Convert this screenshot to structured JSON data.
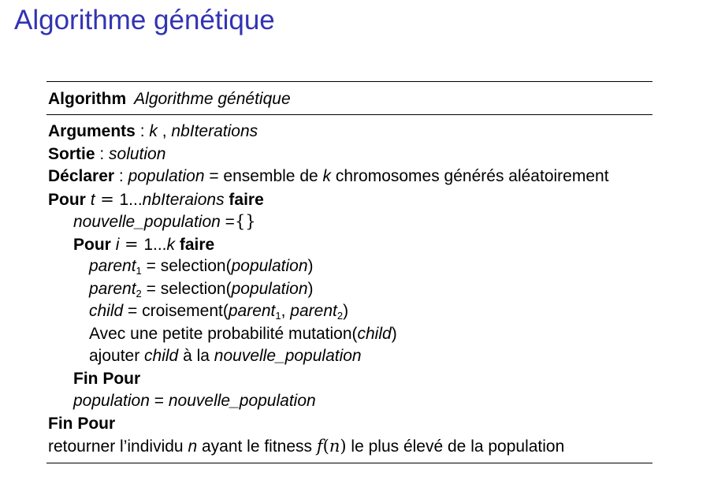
{
  "slide": {
    "title": "Algorithme génétique"
  },
  "algorithm": {
    "caption_keyword": "Algorithm",
    "caption_name": "Algorithme génétique",
    "arguments": {
      "label": "Arguments",
      "sep": " : ",
      "var1": "k",
      "comma": " , ",
      "var2": "nbIterations"
    },
    "sortie": {
      "label": "Sortie",
      "sep": " : ",
      "var": "solution"
    },
    "declarer": {
      "label": "Déclarer",
      "sep": " : ",
      "var": "population",
      "text1": " = ensemble de ",
      "k": "k",
      "text2": " chromosomes générés aléatoirement"
    },
    "pour_outer": {
      "keyword": "Pour",
      "var": "t",
      "eq": " = ",
      "range_start": "1...",
      "range_end": "nbIteraions",
      "faire": "faire"
    },
    "init_new_pop": {
      "var": "nouvelle_population",
      "eq": " =",
      "empty_set": "{}"
    },
    "pour_inner": {
      "keyword": "Pour",
      "var": "i",
      "eq": " = ",
      "range_start": "1...",
      "range_end": "k",
      "faire": "faire"
    },
    "parent1": {
      "var": "parent",
      "sub": "1",
      "text": " = selection(",
      "arg": "population",
      "close": ")"
    },
    "parent2": {
      "var": "parent",
      "sub": "2",
      "text": " = selection(",
      "arg": "population",
      "close": ")"
    },
    "child_line": {
      "var": "child",
      "text": " = croisement(",
      "arg1": "parent",
      "sub1": "1",
      "comma": ", ",
      "arg2": "parent",
      "sub2": "2",
      "close": ")"
    },
    "mutation_line": {
      "text": "Avec une petite probabilité mutation(",
      "arg": "child",
      "close": ")"
    },
    "append_line": {
      "text1": "ajouter ",
      "var": "child",
      "text2": " à la ",
      "target": "nouvelle_population"
    },
    "fin_pour_inner": "Fin Pour",
    "assign_line": {
      "var": "population",
      "text": " = ",
      "value": "nouvelle_population"
    },
    "fin_pour_outer": "Fin Pour",
    "return_line": {
      "text1": "retourner l’individu ",
      "n": "n",
      "text2": " ayant le fitness ",
      "f": "f",
      "paren_open": "(",
      "n2": "n",
      "paren_close": ")",
      "text3": " le plus élevé de la population"
    }
  }
}
